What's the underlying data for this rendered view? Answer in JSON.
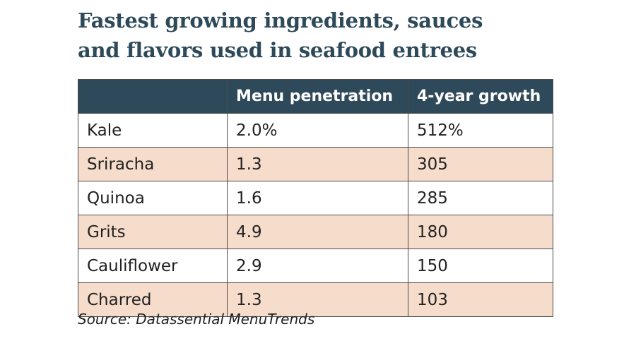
{
  "title": [
    "Fastest growing ingredients, sauces",
    "and flavors used in seafood entrees"
  ],
  "table": {
    "header": [
      "Menu penetration",
      "4-year growth"
    ],
    "rows": [
      [
        "Kale",
        "2.0%",
        "512%"
      ],
      [
        "Sriracha",
        "1.3",
        "305"
      ],
      [
        "Quinoa",
        "1.6",
        "285"
      ],
      [
        "Grits",
        "4.9",
        "180"
      ],
      [
        "Cauliflower",
        "2.9",
        "150"
      ],
      [
        "Charred",
        "1.3",
        "103"
      ]
    ]
  },
  "source": "Source: Datassential MenuTrends"
}
